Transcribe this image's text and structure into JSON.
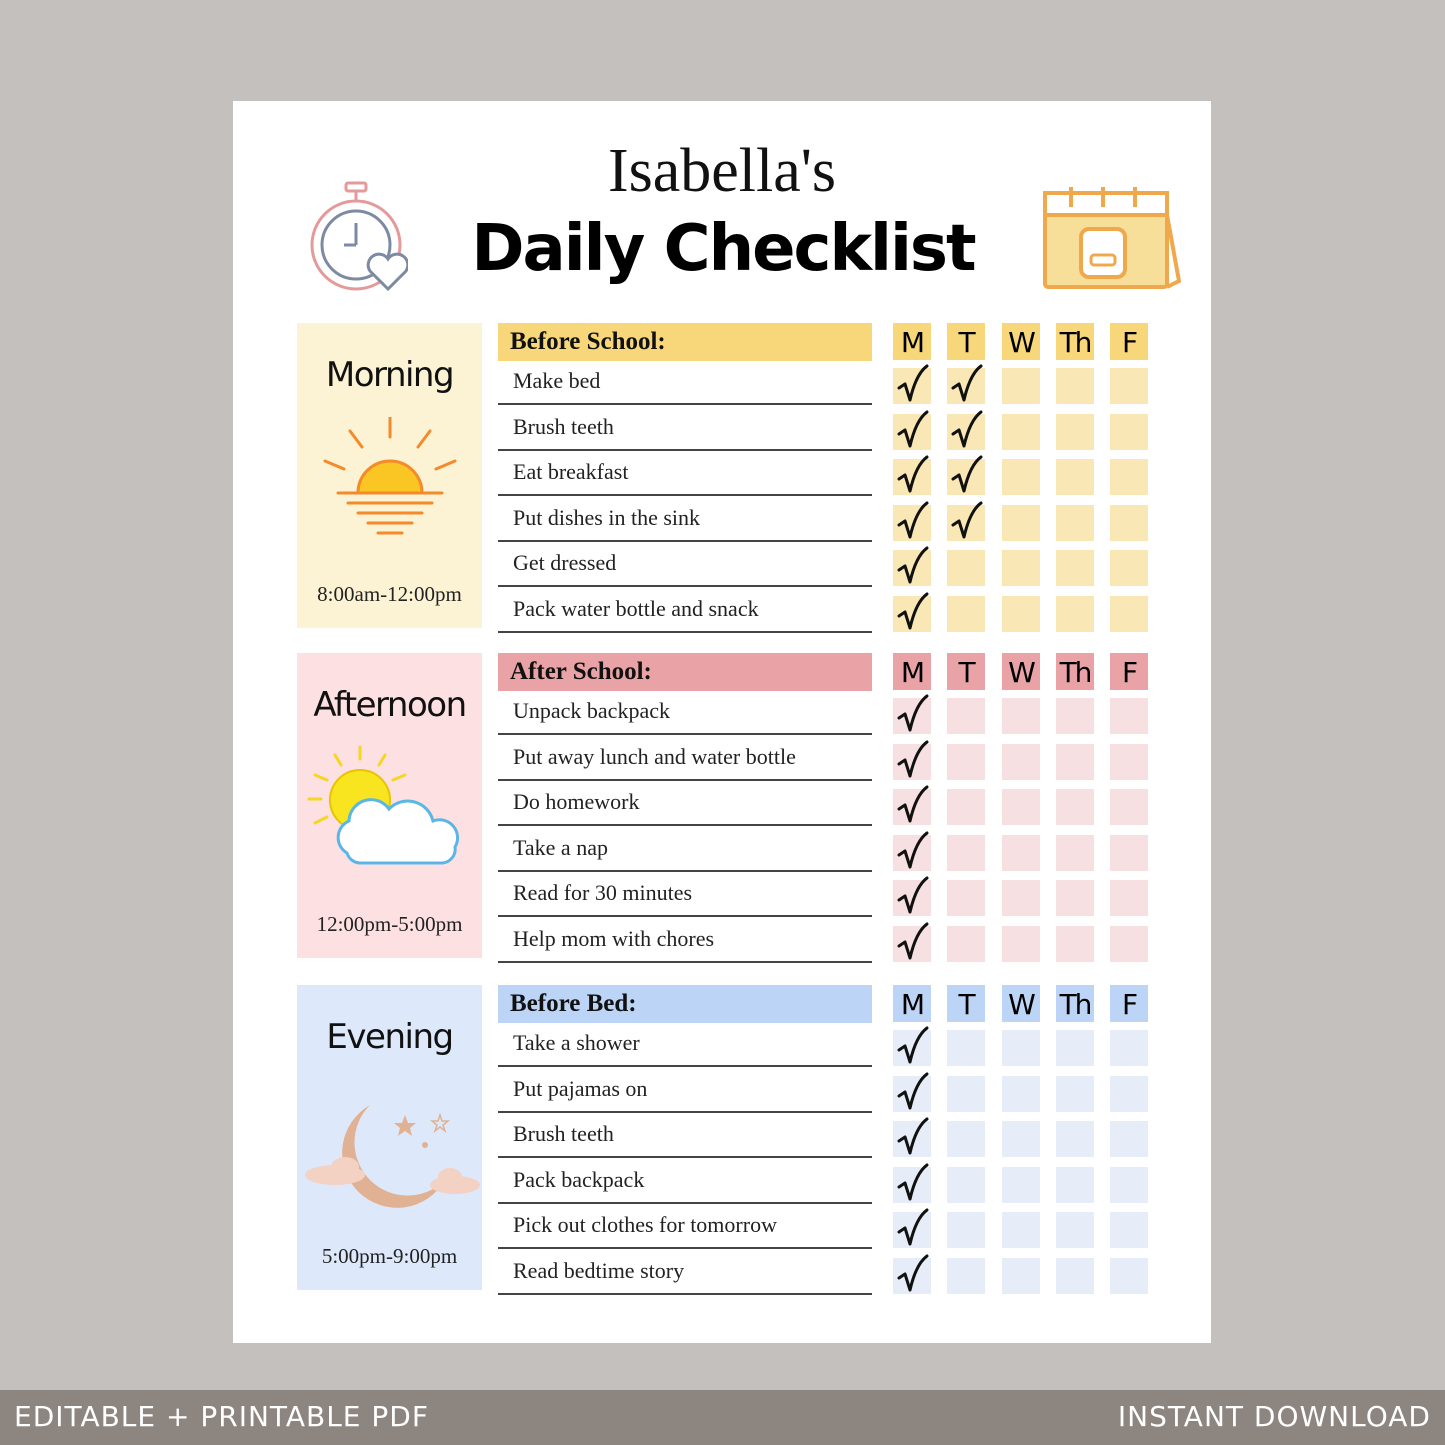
{
  "header": {
    "name": "Isabella's",
    "title": "Daily Checklist",
    "icons": [
      "stopwatch-heart-icon",
      "calendar-backpack-icon"
    ]
  },
  "days": [
    "M",
    "T",
    "W",
    "Th",
    "F"
  ],
  "sections": [
    {
      "key": "morning",
      "period": "Morning",
      "time": "8:00am-12:00pm",
      "heading": "Before School:",
      "icon": "sunrise-icon",
      "colors": {
        "panel": "#fcf2d4",
        "header": "#f7d77a",
        "cell": "#f9e8b5"
      },
      "tasks": [
        {
          "label": "Make bed",
          "checked": [
            true,
            true,
            false,
            false,
            false
          ]
        },
        {
          "label": "Brush teeth",
          "checked": [
            true,
            true,
            false,
            false,
            false
          ]
        },
        {
          "label": "Eat breakfast",
          "checked": [
            true,
            true,
            false,
            false,
            false
          ]
        },
        {
          "label": "Put dishes in the sink",
          "checked": [
            true,
            true,
            false,
            false,
            false
          ]
        },
        {
          "label": "Get dressed",
          "checked": [
            true,
            false,
            false,
            false,
            false
          ]
        },
        {
          "label": "Pack water bottle and snack",
          "checked": [
            true,
            false,
            false,
            false,
            false
          ]
        }
      ]
    },
    {
      "key": "afternoon",
      "period": "Afternoon",
      "time": "12:00pm-5:00pm",
      "heading": "After School:",
      "icon": "sun-cloud-icon",
      "colors": {
        "panel": "#fde0e2",
        "header": "#e9a3a6",
        "cell": "#f6e0e1"
      },
      "tasks": [
        {
          "label": "Unpack backpack",
          "checked": [
            true,
            false,
            false,
            false,
            false
          ]
        },
        {
          "label": "Put away lunch and water bottle",
          "checked": [
            true,
            false,
            false,
            false,
            false
          ]
        },
        {
          "label": "Do homework",
          "checked": [
            true,
            false,
            false,
            false,
            false
          ]
        },
        {
          "label": "Take a nap",
          "checked": [
            true,
            false,
            false,
            false,
            false
          ]
        },
        {
          "label": "Read for 30 minutes",
          "checked": [
            true,
            false,
            false,
            false,
            false
          ]
        },
        {
          "label": "Help mom with chores",
          "checked": [
            true,
            false,
            false,
            false,
            false
          ]
        }
      ]
    },
    {
      "key": "evening",
      "period": "Evening",
      "time": "5:00pm-9:00pm",
      "heading": "Before Bed:",
      "icon": "moon-stars-icon",
      "colors": {
        "panel": "#dde9fb",
        "header": "#bcd4f5",
        "cell": "#e6edf8"
      },
      "tasks": [
        {
          "label": "Take a shower",
          "checked": [
            true,
            false,
            false,
            false,
            false
          ]
        },
        {
          "label": "Put pajamas on",
          "checked": [
            true,
            false,
            false,
            false,
            false
          ]
        },
        {
          "label": "Brush teeth",
          "checked": [
            true,
            false,
            false,
            false,
            false
          ]
        },
        {
          "label": "Pack backpack",
          "checked": [
            true,
            false,
            false,
            false,
            false
          ]
        },
        {
          "label": "Pick out clothes for tomorrow",
          "checked": [
            true,
            false,
            false,
            false,
            false
          ]
        },
        {
          "label": "Read bedtime story",
          "checked": [
            true,
            false,
            false,
            false,
            false
          ]
        }
      ]
    }
  ],
  "footer": {
    "left": "EDITABLE + PRINTABLE PDF",
    "right": "INSTANT DOWNLOAD"
  }
}
